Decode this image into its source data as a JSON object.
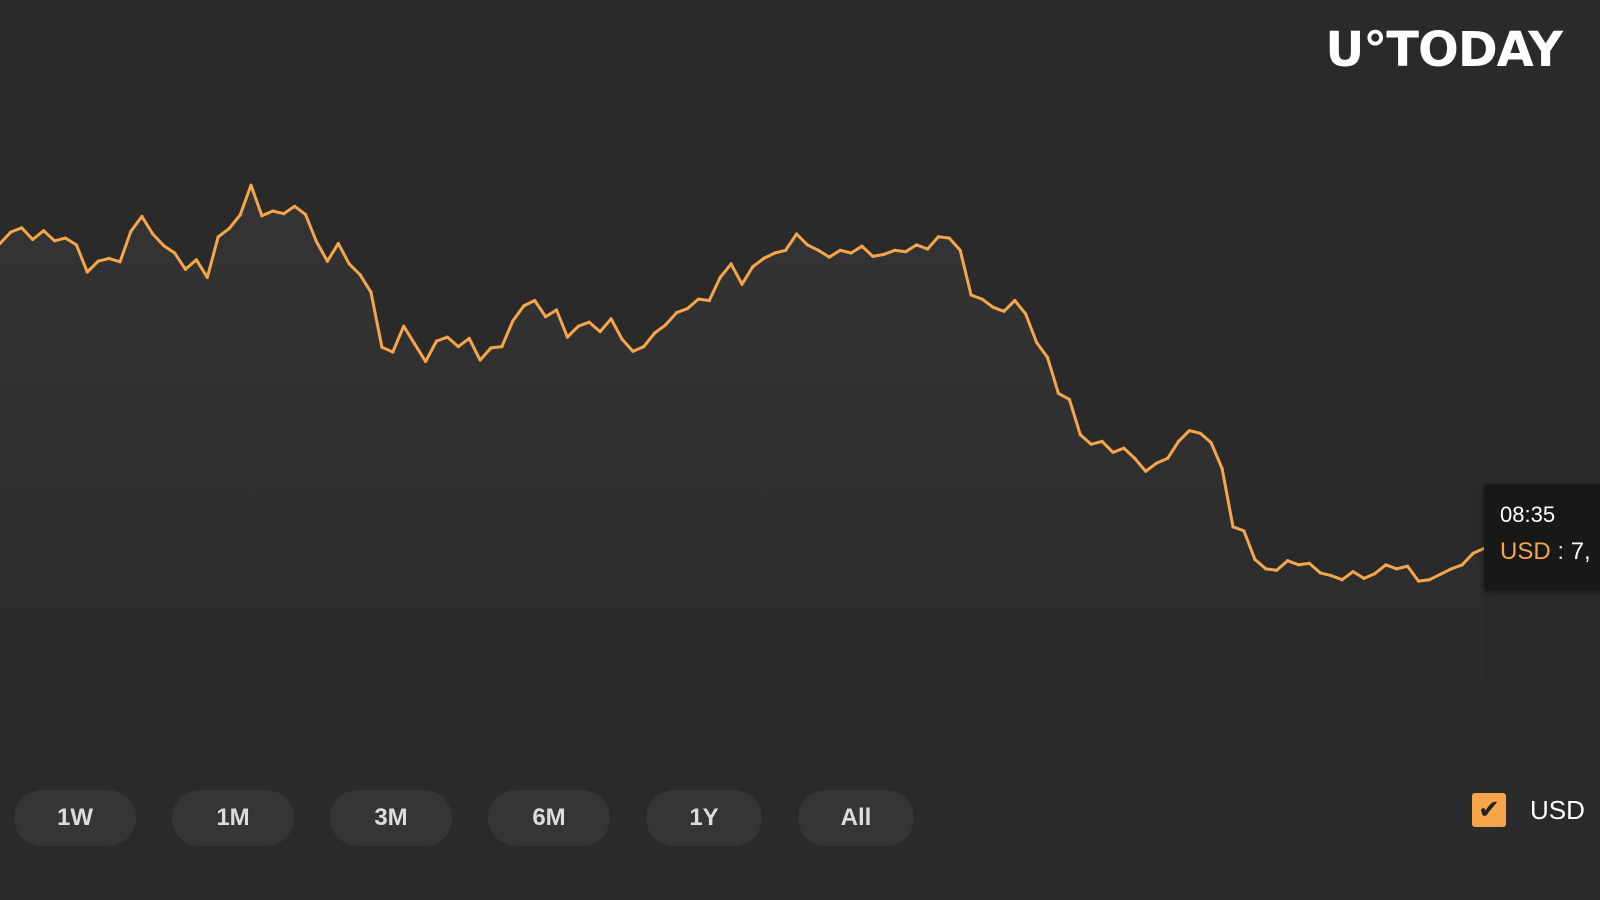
{
  "brand": {
    "logo_text": "U°TODAY"
  },
  "chart_data": {
    "type": "area",
    "title": "",
    "xlabel": "",
    "ylabel": "",
    "ylim": [
      6800,
      7700
    ],
    "legend_placement": "bottom-right",
    "grid": false,
    "series": [
      {
        "name": "USD",
        "color": "#f7a54a",
        "values": [
          7562,
          7579,
          7585,
          7568,
          7581,
          7566,
          7570,
          7560,
          7520,
          7536,
          7540,
          7535,
          7580,
          7602,
          7576,
          7559,
          7548,
          7524,
          7538,
          7512,
          7572,
          7584,
          7604,
          7648,
          7603,
          7610,
          7606,
          7617,
          7605,
          7565,
          7536,
          7562,
          7532,
          7516,
          7490,
          7409,
          7402,
          7440,
          7414,
          7388,
          7418,
          7424,
          7410,
          7422,
          7390,
          7408,
          7410,
          7448,
          7470,
          7478,
          7454,
          7464,
          7424,
          7440,
          7446,
          7432,
          7451,
          7421,
          7403,
          7410,
          7430,
          7442,
          7460,
          7466,
          7480,
          7478,
          7512,
          7532,
          7502,
          7528,
          7540,
          7548,
          7552,
          7576,
          7560,
          7552,
          7542,
          7552,
          7548,
          7558,
          7543,
          7546,
          7552,
          7550,
          7560,
          7554,
          7572,
          7570,
          7552,
          7486,
          7480,
          7468,
          7462,
          7478,
          7458,
          7416,
          7394,
          7341,
          7332,
          7280,
          7266,
          7270,
          7254,
          7260,
          7245,
          7226,
          7238,
          7245,
          7270,
          7286,
          7282,
          7268,
          7230,
          7144,
          7138,
          7096,
          7082,
          7080,
          7094,
          7088,
          7090,
          7076,
          7072,
          7066,
          7078,
          7068,
          7075,
          7088,
          7082,
          7086,
          7064,
          7066,
          7074,
          7082,
          7088,
          7105,
          7112
        ]
      }
    ],
    "tooltip": {
      "time": "08:35",
      "label": "USD",
      "separator": ":",
      "value": "7,"
    }
  },
  "range_buttons": [
    {
      "label": "1W"
    },
    {
      "label": "1M"
    },
    {
      "label": "3M"
    },
    {
      "label": "6M"
    },
    {
      "label": "1Y"
    },
    {
      "label": "All"
    }
  ],
  "legend": {
    "label": "USD",
    "checked_mark": "✔",
    "color": "#f7a54a"
  }
}
